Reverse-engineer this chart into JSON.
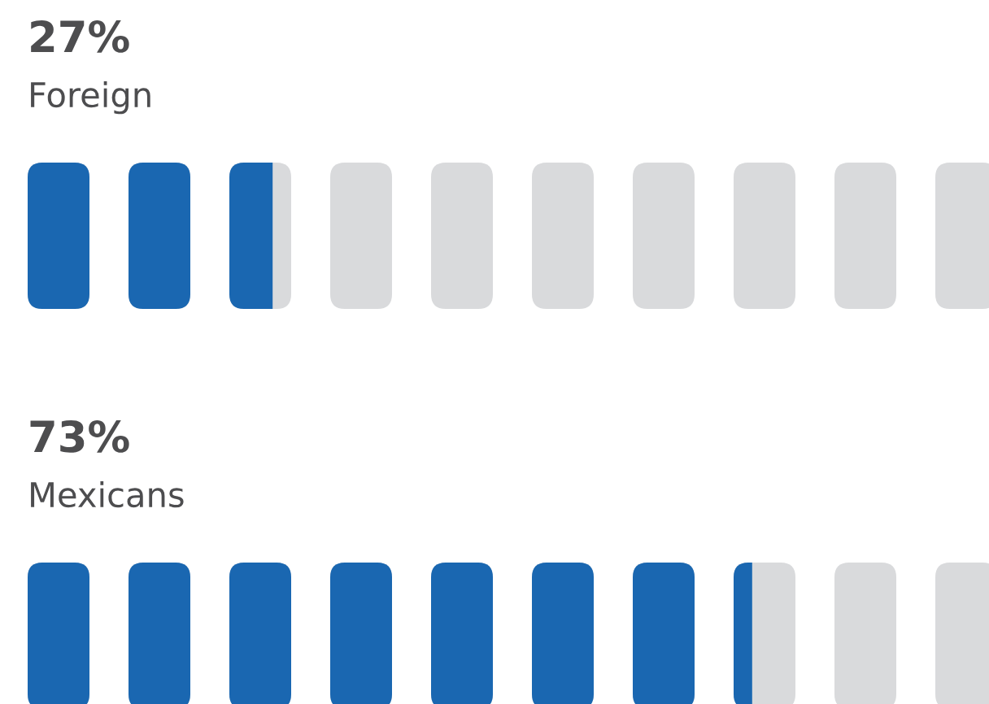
{
  "chart_data": {
    "type": "other",
    "categories": [
      "Foreign",
      "Mexicans"
    ],
    "values": [
      27,
      73
    ],
    "value_labels": [
      "27%",
      "73%"
    ],
    "color": "#1a67b1"
  }
}
